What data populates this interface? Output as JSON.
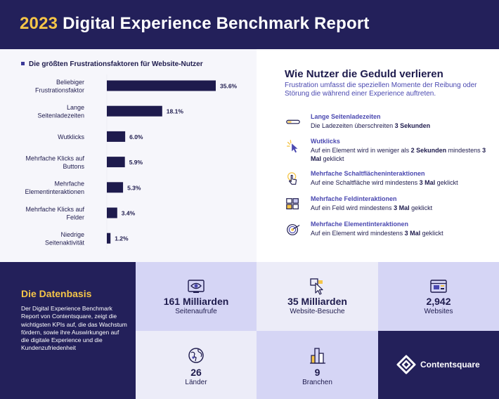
{
  "header": {
    "year": "2023",
    "title": "Digital Experience Benchmark Report"
  },
  "chart_data": {
    "type": "bar",
    "orientation": "horizontal",
    "title": "Die größten Frustrationsfaktoren für Website-Nutzer",
    "categories": [
      [
        "Beliebiger",
        "Frustrationsfaktor"
      ],
      [
        "Lange",
        "Seitenladezeiten"
      ],
      [
        "Wutklicks"
      ],
      [
        "Mehrfache Klicks auf",
        "Buttons"
      ],
      [
        "Mehrfache",
        "Elementinteraktionen"
      ],
      [
        "Mehrfache Klicks auf",
        "Felder"
      ],
      [
        "Niedrige",
        "Seitenaktivität"
      ]
    ],
    "values": [
      35.6,
      18.1,
      6.0,
      5.9,
      5.3,
      3.4,
      1.2
    ],
    "value_labels": [
      "35.6%",
      "18.1%",
      "6.0%",
      "5.9%",
      "5.3%",
      "3.4%",
      "1.2%"
    ],
    "xlim": [
      0,
      40
    ],
    "grid": false,
    "bar_color": "#1e1b4d"
  },
  "right": {
    "title": "Wie Nutzer die Geduld verlieren",
    "subtitle": "Frustration umfasst die speziellen Momente der Reibung oder Störung die während einer Experience auftreten.",
    "items": [
      {
        "icon": "loading-bar-icon",
        "title": "Lange Seitenladezeiten",
        "desc": "Die Ladezeiten überschreiten <b>3 Sekunden</b>"
      },
      {
        "icon": "rage-click-icon",
        "title": "Wutklicks",
        "desc": "Auf ein Element wird in weniger als <b>2 Sekunden</b> mindestens <b>3 Mal</b> geklickt"
      },
      {
        "icon": "tap-button-icon",
        "title": "Mehrfache Schaltflächeninteraktionen",
        "desc": "Auf eine Schaltfläche wird mindestens <b>3 Mal</b> geklickt"
      },
      {
        "icon": "field-grid-icon",
        "title": "Mehrfache Feldinteraktionen",
        "desc": "Auf ein Feld wird mindestens <b>3 Mal</b> geklickt"
      },
      {
        "icon": "target-icon",
        "title": "Mehrfache Elementinteraktionen",
        "desc": "Auf ein Element wird mindestens <b>3 Mal</b> geklickt"
      }
    ]
  },
  "datenbasis": {
    "title": "Die Datenbasis",
    "text": "Der Digital Experience Benchmark Report von Contentsquare, zeigt die wichtigsten KPIs auf, die das Wachstum fördern, sowie ihre Auswirkungen auf die digitale Experience und die Kundenzufriedenheit"
  },
  "stats": [
    {
      "icon": "eye-screen-icon",
      "number": "161 Milliarden",
      "label": "Seitenaufrufe",
      "bg": "#d5d5f5"
    },
    {
      "icon": "cursor-click-icon",
      "number": "35 Milliarden",
      "label": "Website-Besuche",
      "bg": "#ececf8"
    },
    {
      "icon": "browser-window-icon",
      "number": "2,942",
      "label": "Websites",
      "bg": "#d5d5f5"
    },
    {
      "icon": "globe-icon",
      "number": "26",
      "label": "Länder",
      "bg": "#ececf8"
    },
    {
      "icon": "building-icon",
      "number": "9",
      "label": "Branchen",
      "bg": "#d5d5f5"
    }
  ],
  "brand": {
    "name": "Contentsquare"
  },
  "colors": {
    "navy": "#23205a",
    "yellow": "#f5c548",
    "accent": "#4a48b0",
    "lavender": "#d5d5f5",
    "pale": "#ececf8"
  }
}
